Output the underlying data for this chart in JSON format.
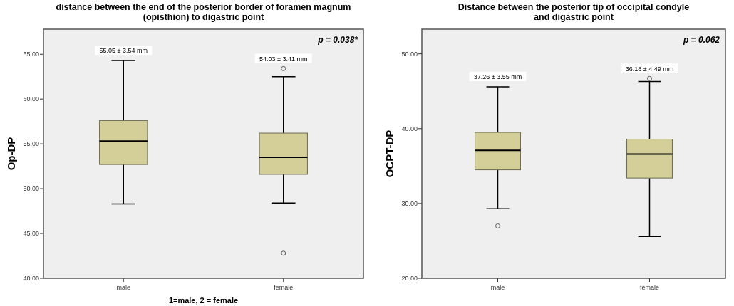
{
  "chart_data": [
    {
      "type": "box",
      "title": "distance between the end of the posterior border of foramen magnum\n(opisthion) to digastric point",
      "xlabel": "1=male, 2 = female",
      "ylabel": "Op-DP",
      "categories": [
        "male",
        "female"
      ],
      "color": "#d4cf98",
      "boxes": [
        {
          "low": 48.3,
          "q1": 52.7,
          "median": 55.3,
          "q3": 57.6,
          "high": 64.3
        },
        {
          "low": 48.4,
          "q1": 51.6,
          "median": 53.5,
          "q3": 56.2,
          "high": 62.5,
          "outliers": [
            63.4,
            42.8
          ]
        }
      ],
      "ylim": [
        40,
        67.8
      ],
      "yticks": [
        {
          "value": 40,
          "label": "40.00"
        },
        {
          "value": 45,
          "label": "45.00"
        },
        {
          "value": 50,
          "label": "50.00"
        },
        {
          "value": 55,
          "label": "55.00"
        },
        {
          "value": 60,
          "label": "60.00"
        },
        {
          "value": 65,
          "label": "65.00"
        }
      ],
      "grid": false,
      "annotations": [
        "55.05 ± 3.54 mm",
        "54.03 ± 3.41 mm",
        "p = 0.038*"
      ]
    },
    {
      "type": "box",
      "title": "Distance between the posterior tip of occipital condyle\nand digastric point",
      "ylabel": "OCPT-DP",
      "categories": [
        "male",
        "female"
      ],
      "color": "#d4cf98",
      "boxes": [
        {
          "low": 29.3,
          "q1": 34.5,
          "median": 37.1,
          "q3": 39.5,
          "high": 45.6,
          "outliers": [
            27.0
          ]
        },
        {
          "low": 25.6,
          "q1": 33.4,
          "median": 36.6,
          "q3": 38.6,
          "high": 46.3,
          "outliers": [
            46.7
          ]
        }
      ],
      "ylim": [
        20,
        53.3
      ],
      "yticks": [
        {
          "value": 20,
          "label": "20.00"
        },
        {
          "value": 30,
          "label": "30.00"
        },
        {
          "value": 40,
          "label": "40.00"
        },
        {
          "value": 50,
          "label": "50.00"
        }
      ],
      "grid": false,
      "annotations": [
        "37.26 ± 3.55 mm",
        "36.18 ± 4.49 mm",
        "p = 0.062"
      ]
    }
  ]
}
